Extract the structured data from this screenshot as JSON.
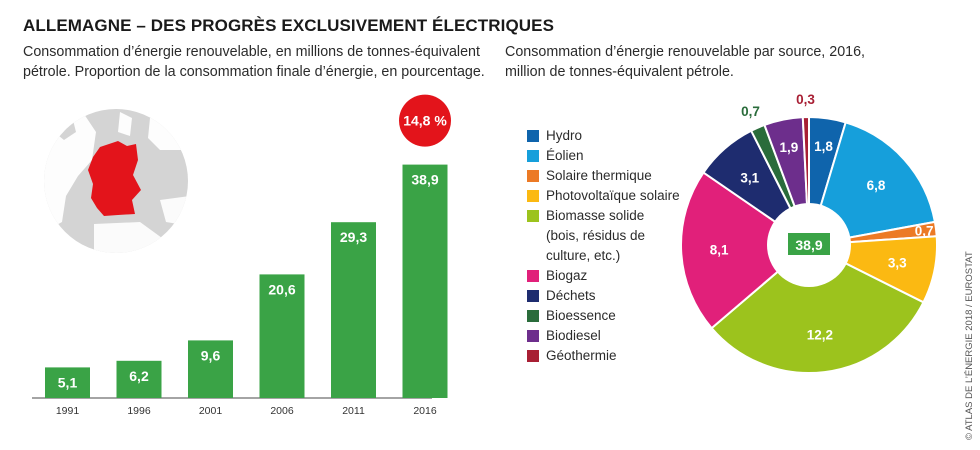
{
  "header": {
    "title": "ALLEMAGNE – DES PROGRÈS EXCLUSIVEMENT ÉLECTRIQUES",
    "credit": "© ATLAS DE L’ÉNERGIE 2018 / EUROSTAT"
  },
  "chart_data": [
    {
      "type": "bar",
      "title": "Consommation d’énergie renouvelable, en millions de tonnes-équivalent\npétrole. Proportion de la consommation finale d’énergie, en pourcentage.",
      "categories": [
        "1991",
        "1996",
        "2001",
        "2006",
        "2011",
        "2016"
      ],
      "values": [
        5.1,
        6.2,
        9.6,
        20.6,
        29.3,
        38.9
      ],
      "value_labels": [
        "5,1",
        "6,2",
        "9,6",
        "20,6",
        "29,3",
        "38,9"
      ],
      "ylim": [
        0,
        40
      ],
      "grid": false,
      "bar_color": "#3aa346",
      "highlight": {
        "label": "14,8 %",
        "category": "2016",
        "color": "#e3141b"
      },
      "map": {
        "country": "Germany",
        "color": "#e3141b"
      }
    },
    {
      "type": "pie",
      "title": "Consommation d’énergie renouvelable par source, 2016,\nmillion de tonnes-équivalent pétrole.",
      "center_label": "38,9",
      "center_color": "#3aa346",
      "legend_position": "left",
      "slices": [
        {
          "name": "Hydro",
          "value": 1.8,
          "label": "1,8",
          "color": "#0f64ac"
        },
        {
          "name": "Éolien",
          "value": 6.8,
          "label": "6,8",
          "color": "#169fdb"
        },
        {
          "name": "Solaire thermique",
          "value": 0.7,
          "label": "0,7",
          "color": "#ec7a25"
        },
        {
          "name": "Photovoltaïque solaire",
          "value": 3.3,
          "label": "3,3",
          "color": "#fbb912"
        },
        {
          "name": "Biomasse solide\n(bois, résidus de\nculture, etc.)",
          "value": 12.2,
          "label": "12,2",
          "color": "#9cc31d"
        },
        {
          "name": "Biogaz",
          "value": 8.1,
          "label": "8,1",
          "color": "#e1207a"
        },
        {
          "name": "Déchets",
          "value": 3.1,
          "label": "3,1",
          "color": "#1e2c6f"
        },
        {
          "name": "Bioessence",
          "value": 0.7,
          "label": "0,7",
          "color": "#2a6c3b"
        },
        {
          "name": "Biodiesel",
          "value": 1.9,
          "label": "1,9",
          "color": "#6d2e8c"
        },
        {
          "name": "Géothermie",
          "value": 0.3,
          "label": "0,3",
          "color": "#a81f34"
        }
      ]
    }
  ]
}
